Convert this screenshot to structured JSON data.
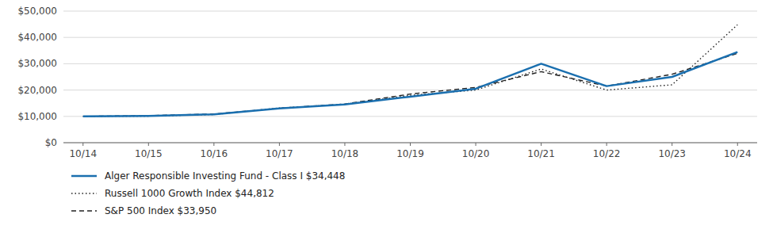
{
  "chart_data": {
    "type": "line",
    "categories": [
      "10/14",
      "10/15",
      "10/16",
      "10/17",
      "10/18",
      "10/19",
      "10/20",
      "10/21",
      "10/22",
      "10/23",
      "10/24"
    ],
    "series": [
      {
        "name": "Alger Responsible Investing Fund - Class I $34,448",
        "color": "#1a6faf",
        "line_style": "solid",
        "values": [
          10000,
          10200,
          10800,
          13000,
          14500,
          17500,
          20500,
          30000,
          21500,
          25000,
          34448
        ]
      },
      {
        "name": "Russell 1000 Growth Index $44,812",
        "color": "#222222",
        "line_style": "dotted",
        "values": [
          10000,
          10100,
          10700,
          13200,
          14600,
          18000,
          20000,
          28000,
          20000,
          22000,
          44812
        ]
      },
      {
        "name": "S&P 500 Index $33,950",
        "color": "#222222",
        "line_style": "dashed",
        "values": [
          10000,
          10300,
          10900,
          13100,
          14700,
          18500,
          21000,
          27000,
          21500,
          26000,
          33950
        ]
      }
    ],
    "ylim": [
      0,
      50000
    ],
    "yticks": [
      {
        "value": 0,
        "label": "$0"
      },
      {
        "value": 10000,
        "label": "$10,000"
      },
      {
        "value": 20000,
        "label": "$20,000"
      },
      {
        "value": 30000,
        "label": "$30,000"
      },
      {
        "value": 40000,
        "label": "$40,000"
      },
      {
        "value": 50000,
        "label": "$50,000"
      }
    ],
    "grid": true,
    "legend": "bottom"
  }
}
